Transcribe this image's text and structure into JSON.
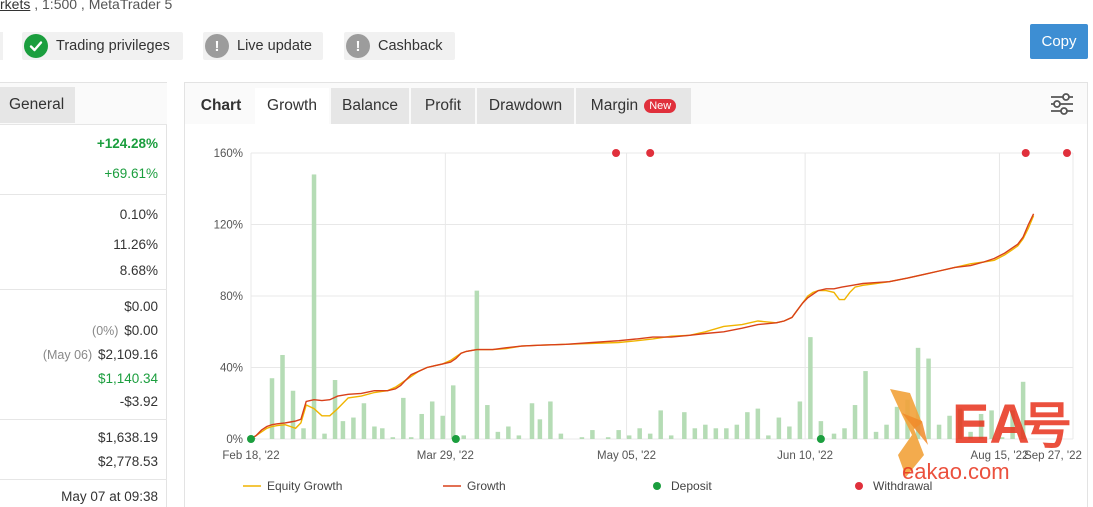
{
  "header": {
    "link_text": "rkets",
    "rest_text": " , 1:500 , MetaTrader 5"
  },
  "privileges": [
    {
      "label": "Trading privileges",
      "icon": "check-icon",
      "status": "ok"
    },
    {
      "label": "Live update",
      "icon": "exclamation-icon",
      "status": "warn"
    },
    {
      "label": "Cashback",
      "icon": "exclamation-icon",
      "status": "warn"
    }
  ],
  "copy_button": "Copy",
  "left_panel": {
    "tab": "General",
    "stats": [
      {
        "value": "+124.28%",
        "style": "green-bold"
      },
      {
        "value": "+69.61%",
        "style": "green"
      },
      {
        "value": "0.10%"
      },
      {
        "value": "11.26%"
      },
      {
        "value": "8.68%"
      },
      {
        "value": "$0.00"
      },
      {
        "prefix": "(0%)",
        "value": "$0.00"
      },
      {
        "prefix": "(May 06)",
        "value": "$2,109.16"
      },
      {
        "value": "$1,140.34",
        "style": "green"
      },
      {
        "value": "-$3.92"
      },
      {
        "value": "$1,638.19"
      },
      {
        "value": "$2,778.53"
      },
      {
        "value": "May 07 at 09:38"
      }
    ]
  },
  "chart_tabs": {
    "label": "Chart",
    "tabs": [
      "Growth",
      "Balance",
      "Profit",
      "Drawdown",
      "Margin"
    ],
    "active": "Growth",
    "new_badge": "New"
  },
  "chart_data": {
    "type": "line",
    "y_ticks": [
      "0%",
      "40%",
      "80%",
      "120%",
      "160%"
    ],
    "ylim": [
      0,
      160
    ],
    "x_ticks": [
      "Feb 18, '22",
      "Mar 29, '22",
      "May 05, '22",
      "Jun 10, '22",
      "Aug 15, '22",
      "Sep 27, '22"
    ],
    "legend": [
      "Equity Growth",
      "Growth",
      "Deposit",
      "Withdrawal"
    ],
    "colors": {
      "equity": "#f0b400",
      "growth": "#d8401a",
      "bars": "#b5dcb5",
      "deposit": "#1b9e3e",
      "withdrawal": "#e0303c"
    },
    "growth": [
      [
        0,
        0
      ],
      [
        2,
        2
      ],
      [
        4,
        5
      ],
      [
        6,
        7
      ],
      [
        8,
        8
      ],
      [
        10,
        8.5
      ],
      [
        13,
        9
      ],
      [
        15,
        9.5
      ],
      [
        17,
        10
      ],
      [
        19,
        11
      ],
      [
        21,
        21
      ],
      [
        24,
        22
      ],
      [
        27,
        21.5
      ],
      [
        30,
        22
      ],
      [
        33,
        24
      ],
      [
        37,
        25
      ],
      [
        42,
        25.5
      ],
      [
        47,
        27
      ],
      [
        52,
        27
      ],
      [
        55,
        28
      ],
      [
        57,
        30
      ],
      [
        59,
        33
      ],
      [
        61,
        36
      ],
      [
        64,
        38
      ],
      [
        67,
        40
      ],
      [
        70,
        41
      ],
      [
        73,
        42
      ],
      [
        76,
        43
      ],
      [
        78,
        45
      ],
      [
        80,
        48
      ],
      [
        82,
        49
      ],
      [
        86,
        50
      ],
      [
        92,
        50
      ],
      [
        97,
        51
      ],
      [
        103,
        52
      ],
      [
        110,
        52.5
      ],
      [
        120,
        53
      ],
      [
        130,
        54
      ],
      [
        140,
        55
      ],
      [
        147,
        56
      ],
      [
        153,
        57
      ],
      [
        160,
        57
      ],
      [
        167,
        58
      ],
      [
        173,
        59
      ],
      [
        180,
        60
      ],
      [
        187,
        62
      ],
      [
        193,
        64
      ],
      [
        200,
        65
      ],
      [
        203,
        66
      ],
      [
        206,
        68
      ],
      [
        208,
        72
      ],
      [
        210,
        76
      ],
      [
        212,
        79
      ],
      [
        214,
        81
      ],
      [
        216,
        83
      ],
      [
        219,
        84
      ],
      [
        222,
        84
      ],
      [
        225,
        85
      ],
      [
        229,
        86
      ],
      [
        233,
        87
      ],
      [
        238,
        87.5
      ],
      [
        243,
        88
      ],
      [
        250,
        90
      ],
      [
        256,
        92
      ],
      [
        262,
        94
      ],
      [
        268,
        96
      ],
      [
        274,
        97
      ],
      [
        279,
        99
      ],
      [
        283,
        101
      ],
      [
        287,
        104
      ],
      [
        290,
        107
      ],
      [
        292,
        109
      ],
      [
        294,
        113
      ],
      [
        296,
        120
      ],
      [
        298,
        126
      ]
    ],
    "equity": [
      [
        0,
        0
      ],
      [
        2,
        2
      ],
      [
        4,
        4
      ],
      [
        6,
        6
      ],
      [
        8,
        7
      ],
      [
        10,
        7.5
      ],
      [
        13,
        8
      ],
      [
        15,
        7
      ],
      [
        17,
        6
      ],
      [
        19,
        9
      ],
      [
        21,
        19
      ],
      [
        24,
        17
      ],
      [
        27,
        13
      ],
      [
        30,
        13
      ],
      [
        33,
        17
      ],
      [
        37,
        23
      ],
      [
        42,
        24
      ],
      [
        47,
        26
      ],
      [
        52,
        27
      ],
      [
        55,
        29
      ],
      [
        57,
        31
      ],
      [
        59,
        33
      ],
      [
        61,
        35
      ],
      [
        64,
        38
      ],
      [
        67,
        40
      ],
      [
        70,
        41
      ],
      [
        73,
        42
      ],
      [
        76,
        44
      ],
      [
        78,
        46
      ],
      [
        80,
        48
      ],
      [
        82,
        49
      ],
      [
        86,
        50
      ],
      [
        92,
        50
      ],
      [
        97,
        50.5
      ],
      [
        103,
        52
      ],
      [
        110,
        52.5
      ],
      [
        120,
        53
      ],
      [
        130,
        53.5
      ],
      [
        140,
        54
      ],
      [
        147,
        55
      ],
      [
        153,
        56
      ],
      [
        160,
        57.5
      ],
      [
        167,
        58
      ],
      [
        173,
        60
      ],
      [
        180,
        63
      ],
      [
        187,
        64
      ],
      [
        193,
        66
      ],
      [
        200,
        65
      ],
      [
        203,
        66
      ],
      [
        206,
        68
      ],
      [
        208,
        72
      ],
      [
        210,
        76
      ],
      [
        212,
        80
      ],
      [
        214,
        82
      ],
      [
        216,
        83
      ],
      [
        219,
        83
      ],
      [
        222,
        82
      ],
      [
        224,
        78
      ],
      [
        226,
        78
      ],
      [
        228,
        82
      ],
      [
        230,
        85
      ],
      [
        233,
        86
      ],
      [
        238,
        87
      ],
      [
        243,
        88
      ],
      [
        250,
        90
      ],
      [
        256,
        92
      ],
      [
        262,
        94
      ],
      [
        268,
        96
      ],
      [
        274,
        98
      ],
      [
        279,
        99
      ],
      [
        283,
        100
      ],
      [
        287,
        103
      ],
      [
        290,
        106
      ],
      [
        292,
        108
      ],
      [
        294,
        112
      ],
      [
        296,
        118
      ],
      [
        298,
        125
      ]
    ],
    "bars": [
      [
        1,
        0.5
      ],
      [
        8,
        34
      ],
      [
        12,
        47
      ],
      [
        16,
        27
      ],
      [
        20,
        6
      ],
      [
        24,
        148
      ],
      [
        28,
        3
      ],
      [
        32,
        33
      ],
      [
        35,
        10
      ],
      [
        39,
        12
      ],
      [
        43,
        20
      ],
      [
        47,
        7
      ],
      [
        50,
        6
      ],
      [
        54,
        1
      ],
      [
        58,
        23
      ],
      [
        61,
        1
      ],
      [
        65,
        14
      ],
      [
        69,
        21
      ],
      [
        73,
        13
      ],
      [
        77,
        30
      ],
      [
        81,
        2
      ],
      [
        86,
        83
      ],
      [
        90,
        19
      ],
      [
        94,
        4
      ],
      [
        98,
        7
      ],
      [
        102,
        2
      ],
      [
        107,
        20
      ],
      [
        110,
        11
      ],
      [
        114,
        21
      ],
      [
        118,
        3
      ],
      [
        126,
        1
      ],
      [
        130,
        5
      ],
      [
        136,
        1
      ],
      [
        140,
        5
      ],
      [
        144,
        2
      ],
      [
        148,
        6
      ],
      [
        152,
        3
      ],
      [
        156,
        16
      ],
      [
        160,
        2
      ],
      [
        165,
        15
      ],
      [
        169,
        6
      ],
      [
        173,
        8
      ],
      [
        177,
        6
      ],
      [
        181,
        6
      ],
      [
        185,
        8
      ],
      [
        189,
        15
      ],
      [
        193,
        17
      ],
      [
        197,
        2
      ],
      [
        201,
        12
      ],
      [
        205,
        7
      ],
      [
        209,
        21
      ],
      [
        213,
        57
      ],
      [
        217,
        10
      ],
      [
        222,
        3
      ],
      [
        226,
        6
      ],
      [
        230,
        19
      ],
      [
        234,
        38
      ],
      [
        238,
        4
      ],
      [
        242,
        8
      ],
      [
        246,
        18
      ],
      [
        250,
        22
      ],
      [
        254,
        51
      ],
      [
        258,
        45
      ],
      [
        262,
        8
      ],
      [
        266,
        13
      ],
      [
        270,
        17
      ],
      [
        274,
        4
      ],
      [
        278,
        14
      ],
      [
        282,
        16
      ],
      [
        286,
        1
      ],
      [
        290,
        16
      ],
      [
        294,
        32
      ]
    ],
    "deposits": [
      [
        0,
        0
      ],
      [
        78,
        0
      ],
      [
        217,
        0
      ]
    ],
    "withdrawals": [
      [
        139,
        160
      ],
      [
        152,
        160
      ],
      [
        295,
        160
      ],
      [
        313,
        160
      ]
    ],
    "x_tick_positions": [
      0,
      74,
      143,
      211,
      285,
      345
    ],
    "x_range": [
      0,
      313
    ]
  }
}
